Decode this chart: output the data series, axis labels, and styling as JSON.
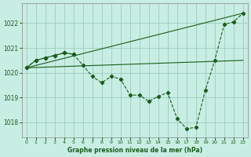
{
  "title": "Graphe pression niveau de la mer (hPa)",
  "bg_color": "#c8eee4",
  "grid_color": "#99ccbb",
  "line_color": "#1a5c1a",
  "ylim": [
    1017.4,
    1022.8
  ],
  "yticks": [
    1018,
    1019,
    1020,
    1021,
    1022
  ],
  "xticks": [
    0,
    1,
    2,
    3,
    4,
    5,
    6,
    7,
    8,
    9,
    10,
    11,
    12,
    13,
    14,
    15,
    16,
    17,
    18,
    19,
    20,
    21,
    22,
    23
  ],
  "main_line": {
    "x": [
      0,
      1,
      2,
      3,
      4,
      5,
      6,
      7,
      8,
      9,
      10,
      11,
      12,
      13,
      14,
      15,
      16,
      17,
      18,
      19,
      20,
      21,
      22,
      23
    ],
    "y": [
      1020.2,
      1020.5,
      1020.6,
      1020.7,
      1020.8,
      1020.75,
      1020.3,
      1019.85,
      1019.6,
      1019.85,
      1019.75,
      1019.1,
      1019.1,
      1018.85,
      1019.05,
      1019.2,
      1018.15,
      1017.75,
      1017.8,
      1019.3,
      1020.5,
      1021.95,
      1022.05,
      1022.4
    ]
  },
  "flat_line": {
    "x": [
      0,
      23
    ],
    "y": [
      1020.2,
      1020.5
    ]
  },
  "upper_line": {
    "x": [
      0,
      23
    ],
    "y": [
      1020.2,
      1022.4
    ]
  },
  "short_line": {
    "x": [
      0,
      1,
      2,
      3,
      4,
      5
    ],
    "y": [
      1020.2,
      1020.5,
      1020.6,
      1020.7,
      1020.8,
      1020.75
    ]
  }
}
